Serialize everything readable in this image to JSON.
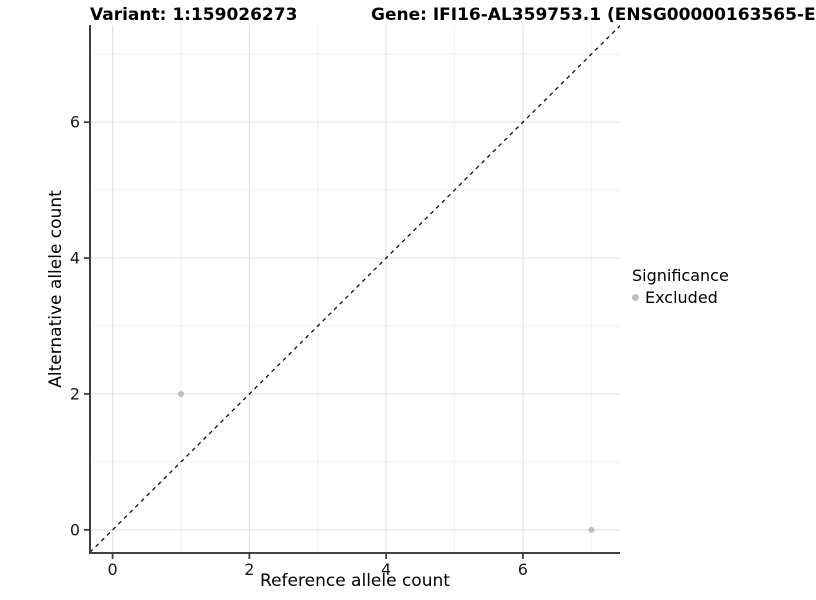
{
  "chart_data": {
    "type": "scatter",
    "title_variant": "Variant: 1:159026273",
    "title_gene": "Gene: IFI16-AL359753.1 (ENSG00000163565-E",
    "xlabel": "Reference allele count",
    "ylabel": "Alternative allele count",
    "xlim": [
      -0.33,
      7.42
    ],
    "ylim": [
      -0.34,
      7.43
    ],
    "x_ticks": [
      0,
      2,
      4,
      6
    ],
    "y_ticks": [
      0,
      2,
      4,
      6
    ],
    "x_minor_gridlines": [
      1,
      3,
      5,
      7
    ],
    "y_minor_gridlines": [
      1,
      3,
      5,
      7
    ],
    "grid": true,
    "legend_position": "right",
    "identity_line": {
      "slope": 1,
      "intercept": 0,
      "style": "dashed",
      "color": "#000000"
    },
    "series": [
      {
        "name": "Excluded",
        "color": "#bdbdbd",
        "points": [
          {
            "x": 1,
            "y": 2
          },
          {
            "x": 7,
            "y": 0
          }
        ]
      }
    ],
    "legend": {
      "title": "Significance",
      "entries": [
        {
          "label": "Excluded",
          "color": "#bdbdbd"
        }
      ]
    },
    "colors": {
      "axis_line": "#404040",
      "major_gridline": "#e4e4e4",
      "minor_gridline": "#f0f0f0",
      "tick_label": "#1a1a1a",
      "panel_background": "#ffffff"
    }
  }
}
